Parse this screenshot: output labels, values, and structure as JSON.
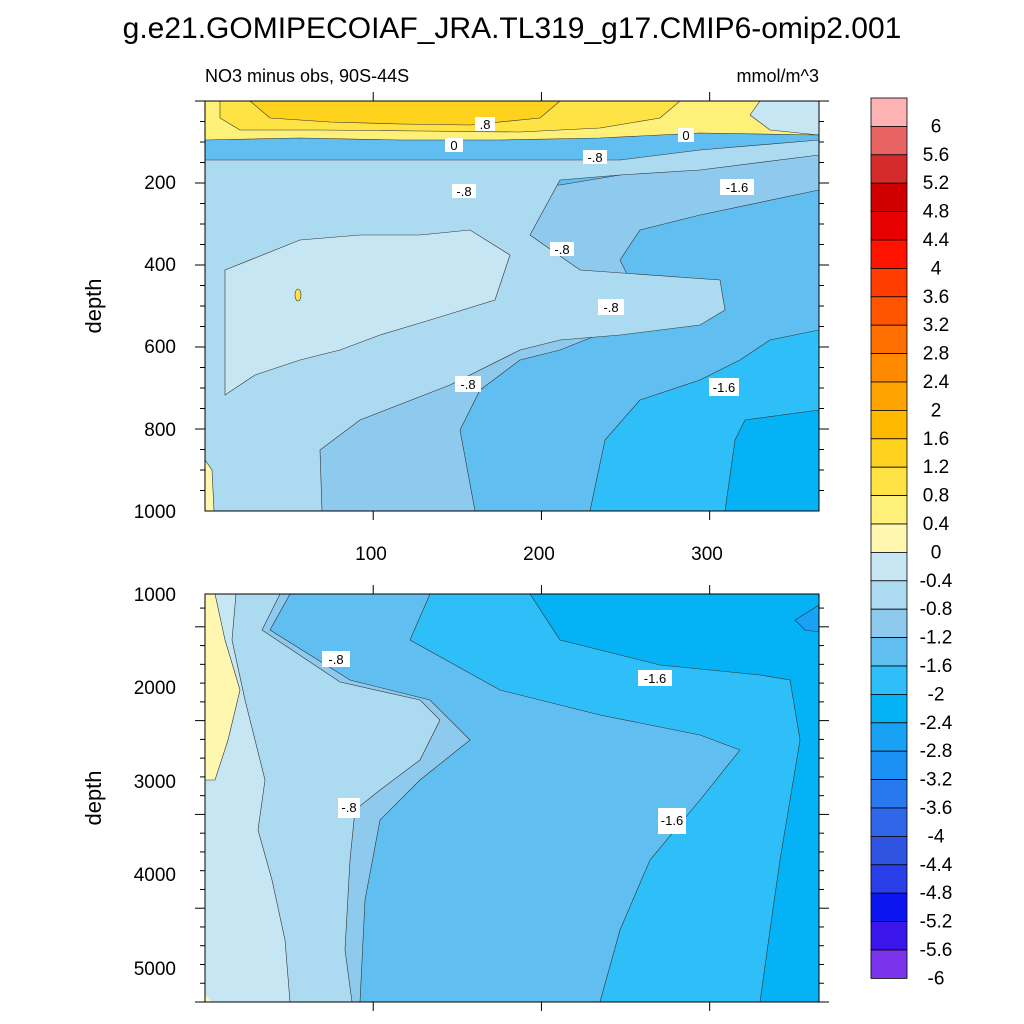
{
  "title": "g.e21.GOMIPECOIAF_JRA.TL319_g17.CMIP6-omip2.001",
  "chart_data": [
    {
      "type": "heatmap",
      "panel": "upper",
      "subtitle": "NO3 minus obs, 90S-44S",
      "units": "mmol/m^3",
      "ylabel": "depth",
      "xlabel": "",
      "xlim": [
        0,
        365
      ],
      "ylim": [
        1000,
        0
      ],
      "x_ticks": [
        "100",
        "200",
        "300"
      ],
      "y_ticks": [
        "200",
        "400",
        "600",
        "800",
        "1000"
      ],
      "contour_labels": [
        ".8",
        "0",
        "0",
        "-.8",
        "-.8",
        "-1.6",
        "-.8",
        "-.8",
        "-.8",
        "-1.6"
      ]
    },
    {
      "type": "heatmap",
      "panel": "lower",
      "ylabel": "depth",
      "xlim": [
        0,
        365
      ],
      "ylim": [
        5350,
        1000
      ],
      "y_ticks": [
        "1000",
        "2000",
        "3000",
        "4000",
        "5000"
      ],
      "contour_labels": [
        "-.8",
        "-1.6",
        "-.8",
        "-1.6"
      ]
    }
  ],
  "colorbar": {
    "labels": [
      "6",
      "5.6",
      "5.2",
      "4.8",
      "4.4",
      "4",
      "3.6",
      "3.2",
      "2.8",
      "2.4",
      "2",
      "1.6",
      "1.2",
      "0.8",
      "0.4",
      "0",
      "-0.4",
      "-0.8",
      "-1.2",
      "-1.6",
      "-2",
      "-2.4",
      "-2.8",
      "-3.2",
      "-3.6",
      "-4",
      "-4.4",
      "-4.8",
      "-5.2",
      "-5.6",
      "-6"
    ],
    "colors": [
      "#fdb3b3",
      "#e86464",
      "#d42a2a",
      "#d00000",
      "#e60000",
      "#ff1400",
      "#ff3c00",
      "#ff5500",
      "#ff6f00",
      "#ff8a00",
      "#ffa300",
      "#ffba00",
      "#ffd21e",
      "#ffe344",
      "#fff07a",
      "#fff7b0",
      "#c7e6f4",
      "#acdaf0",
      "#8dcaed",
      "#60bff0",
      "#2fbff8",
      "#04b2f5",
      "#19a1f5",
      "#1b90f4",
      "#2878ef",
      "#3066e8",
      "#3054e2",
      "#2a3ee9",
      "#0c15ef",
      "#3b16ea",
      "#7b33ec"
    ]
  }
}
